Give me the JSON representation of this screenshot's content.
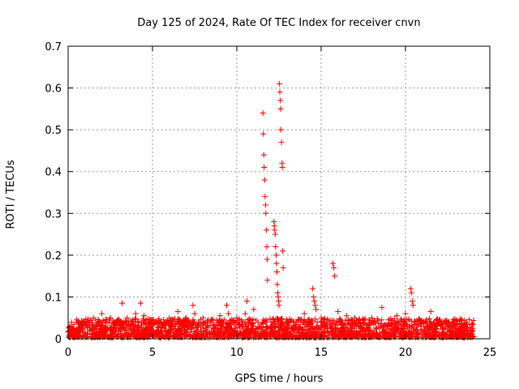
{
  "chart_data": {
    "type": "scatter",
    "title": "Day 125 of 2024, Rate Of TEC Index for receiver cnvn",
    "xlabel": "GPS time / hours",
    "ylabel": "ROTI / TECUs",
    "xlim": [
      0,
      25
    ],
    "ylim": [
      0,
      0.7
    ],
    "x_ticks": [
      "0",
      "5",
      "10",
      "15",
      "20",
      "25"
    ],
    "y_ticks": [
      "0",
      "0.1",
      "0.2",
      "0.3",
      "0.4",
      "0.5",
      "0.6",
      "0.7"
    ],
    "grid": true,
    "marker": "+",
    "series_color": "#ff0000",
    "series": [
      {
        "x": [
          11.55,
          11.57,
          11.6,
          11.62,
          11.65,
          11.68,
          11.7,
          11.72,
          11.75,
          11.78,
          11.8,
          11.82,
          12.2,
          12.22,
          12.25,
          12.28,
          12.3,
          12.33,
          12.35,
          12.38,
          12.4,
          12.42,
          12.45,
          12.48,
          12.5,
          12.52,
          12.55,
          12.58,
          12.6,
          12.62,
          12.65,
          12.68,
          12.7,
          12.72,
          12.75,
          14.5,
          14.55,
          14.6,
          14.65,
          14.7,
          15.7,
          15.75,
          15.8,
          20.3,
          20.35,
          20.4,
          20.45,
          3.2,
          4.3,
          7.4,
          9.4,
          10.6,
          18.6,
          21.5,
          0.1,
          0.5,
          1.0,
          1.5,
          2.0,
          2.5,
          3.0,
          3.5,
          4.0,
          4.5,
          5.0,
          5.5,
          6.0,
          6.5,
          7.0,
          7.5,
          8.0,
          8.5,
          9.0,
          9.5,
          10.0,
          10.5,
          11.0,
          13.0,
          13.5,
          14.0,
          15.0,
          16.0,
          16.5,
          17.0,
          17.5,
          18.0,
          19.0,
          19.5,
          20.0,
          21.0,
          22.0,
          22.5,
          23.0,
          23.5,
          24.0
        ],
        "y": [
          0.54,
          0.49,
          0.44,
          0.41,
          0.38,
          0.34,
          0.32,
          0.3,
          0.26,
          0.22,
          0.19,
          0.14,
          0.28,
          0.27,
          0.26,
          0.25,
          0.22,
          0.2,
          0.18,
          0.16,
          0.13,
          0.11,
          0.1,
          0.09,
          0.08,
          0.61,
          0.59,
          0.57,
          0.55,
          0.5,
          0.47,
          0.42,
          0.41,
          0.21,
          0.17,
          0.12,
          0.1,
          0.09,
          0.08,
          0.07,
          0.18,
          0.17,
          0.15,
          0.12,
          0.11,
          0.09,
          0.08,
          0.085,
          0.085,
          0.08,
          0.08,
          0.09,
          0.075,
          0.065,
          0.03,
          0.045,
          0.04,
          0.05,
          0.06,
          0.05,
          0.045,
          0.05,
          0.06,
          0.055,
          0.045,
          0.04,
          0.05,
          0.065,
          0.05,
          0.06,
          0.05,
          0.045,
          0.055,
          0.06,
          0.05,
          0.06,
          0.07,
          0.04,
          0.035,
          0.06,
          0.05,
          0.065,
          0.055,
          0.05,
          0.045,
          0.05,
          0.045,
          0.055,
          0.06,
          0.04,
          0.045,
          0.04,
          0.035,
          0.03,
          0.025
        ]
      }
    ]
  }
}
